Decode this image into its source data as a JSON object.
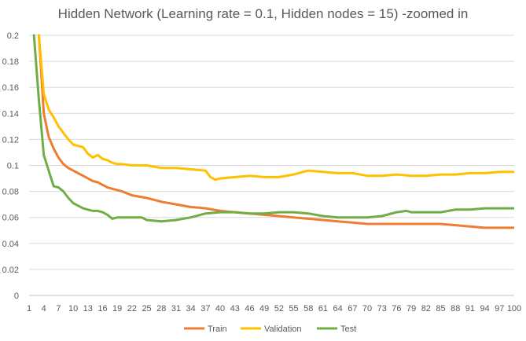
{
  "chart_data": {
    "type": "line",
    "title": "Hidden Network (Learning rate = 0.1, Hidden nodes = 15) -zoomed in",
    "xlabel": "",
    "ylabel": "",
    "ylim": [
      0,
      0.2
    ],
    "xlim": [
      1,
      100
    ],
    "grid": true,
    "legend_position": "bottom",
    "y_ticks": [
      0,
      0.02,
      0.04,
      0.06,
      0.08,
      0.1,
      0.12,
      0.14,
      0.16,
      0.18,
      0.2
    ],
    "x_ticks": [
      1,
      4,
      7,
      10,
      13,
      16,
      19,
      22,
      25,
      28,
      31,
      34,
      37,
      40,
      43,
      46,
      49,
      52,
      55,
      58,
      61,
      64,
      67,
      70,
      73,
      76,
      79,
      82,
      85,
      88,
      91,
      94,
      97,
      100
    ],
    "series": [
      {
        "name": "Train",
        "color": "#ED7D31",
        "points": [
          [
            3,
            0.2
          ],
          [
            4,
            0.14
          ],
          [
            5,
            0.122
          ],
          [
            6,
            0.113
          ],
          [
            7,
            0.106
          ],
          [
            8,
            0.101
          ],
          [
            9,
            0.098
          ],
          [
            10,
            0.096
          ],
          [
            11,
            0.094
          ],
          [
            12,
            0.092
          ],
          [
            13,
            0.09
          ],
          [
            14,
            0.088
          ],
          [
            15,
            0.087
          ],
          [
            16,
            0.085
          ],
          [
            17,
            0.083
          ],
          [
            18,
            0.082
          ],
          [
            19,
            0.081
          ],
          [
            20,
            0.08
          ],
          [
            22,
            0.077
          ],
          [
            25,
            0.075
          ],
          [
            28,
            0.072
          ],
          [
            31,
            0.07
          ],
          [
            34,
            0.068
          ],
          [
            37,
            0.067
          ],
          [
            40,
            0.065
          ],
          [
            43,
            0.064
          ],
          [
            46,
            0.063
          ],
          [
            49,
            0.062
          ],
          [
            52,
            0.061
          ],
          [
            55,
            0.06
          ],
          [
            58,
            0.059
          ],
          [
            61,
            0.058
          ],
          [
            64,
            0.057
          ],
          [
            67,
            0.056
          ],
          [
            70,
            0.055
          ],
          [
            73,
            0.055
          ],
          [
            76,
            0.055
          ],
          [
            79,
            0.055
          ],
          [
            82,
            0.055
          ],
          [
            85,
            0.055
          ],
          [
            88,
            0.054
          ],
          [
            91,
            0.053
          ],
          [
            94,
            0.052
          ],
          [
            97,
            0.052
          ],
          [
            100,
            0.052
          ]
        ]
      },
      {
        "name": "Validation",
        "color": "#FFC000",
        "points": [
          [
            3,
            0.2
          ],
          [
            4,
            0.155
          ],
          [
            5,
            0.143
          ],
          [
            6,
            0.137
          ],
          [
            7,
            0.13
          ],
          [
            8,
            0.125
          ],
          [
            9,
            0.12
          ],
          [
            10,
            0.116
          ],
          [
            11,
            0.115
          ],
          [
            12,
            0.114
          ],
          [
            13,
            0.109
          ],
          [
            14,
            0.106
          ],
          [
            15,
            0.108
          ],
          [
            16,
            0.105
          ],
          [
            17,
            0.104
          ],
          [
            18,
            0.102
          ],
          [
            19,
            0.101
          ],
          [
            20,
            0.101
          ],
          [
            22,
            0.1
          ],
          [
            25,
            0.1
          ],
          [
            28,
            0.098
          ],
          [
            31,
            0.098
          ],
          [
            34,
            0.097
          ],
          [
            37,
            0.096
          ],
          [
            38,
            0.091
          ],
          [
            39,
            0.089
          ],
          [
            40,
            0.09
          ],
          [
            43,
            0.091
          ],
          [
            46,
            0.092
          ],
          [
            49,
            0.091
          ],
          [
            52,
            0.091
          ],
          [
            55,
            0.093
          ],
          [
            58,
            0.096
          ],
          [
            61,
            0.095
          ],
          [
            64,
            0.094
          ],
          [
            67,
            0.094
          ],
          [
            70,
            0.092
          ],
          [
            73,
            0.092
          ],
          [
            76,
            0.093
          ],
          [
            79,
            0.092
          ],
          [
            82,
            0.092
          ],
          [
            85,
            0.093
          ],
          [
            88,
            0.093
          ],
          [
            91,
            0.094
          ],
          [
            94,
            0.094
          ],
          [
            97,
            0.095
          ],
          [
            100,
            0.095
          ]
        ]
      },
      {
        "name": "Test",
        "color": "#70AD47",
        "points": [
          [
            2,
            0.2
          ],
          [
            3,
            0.15
          ],
          [
            4,
            0.108
          ],
          [
            5,
            0.096
          ],
          [
            6,
            0.084
          ],
          [
            7,
            0.083
          ],
          [
            8,
            0.08
          ],
          [
            9,
            0.075
          ],
          [
            10,
            0.071
          ],
          [
            11,
            0.069
          ],
          [
            12,
            0.067
          ],
          [
            13,
            0.066
          ],
          [
            14,
            0.065
          ],
          [
            15,
            0.065
          ],
          [
            16,
            0.064
          ],
          [
            17,
            0.062
          ],
          [
            18,
            0.059
          ],
          [
            19,
            0.06
          ],
          [
            20,
            0.06
          ],
          [
            22,
            0.06
          ],
          [
            24,
            0.06
          ],
          [
            25,
            0.058
          ],
          [
            28,
            0.057
          ],
          [
            31,
            0.058
          ],
          [
            34,
            0.06
          ],
          [
            37,
            0.063
          ],
          [
            40,
            0.064
          ],
          [
            43,
            0.064
          ],
          [
            46,
            0.063
          ],
          [
            49,
            0.063
          ],
          [
            52,
            0.064
          ],
          [
            55,
            0.064
          ],
          [
            58,
            0.063
          ],
          [
            61,
            0.061
          ],
          [
            64,
            0.06
          ],
          [
            67,
            0.06
          ],
          [
            70,
            0.06
          ],
          [
            73,
            0.061
          ],
          [
            76,
            0.064
          ],
          [
            78,
            0.065
          ],
          [
            79,
            0.064
          ],
          [
            82,
            0.064
          ],
          [
            85,
            0.064
          ],
          [
            88,
            0.066
          ],
          [
            91,
            0.066
          ],
          [
            94,
            0.067
          ],
          [
            97,
            0.067
          ],
          [
            100,
            0.067
          ]
        ]
      }
    ]
  }
}
